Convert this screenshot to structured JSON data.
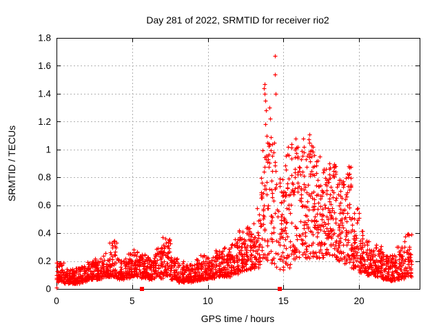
{
  "chart_data": {
    "type": "scatter",
    "title": "Day 281 of 2022, SRMTID for receiver rio2",
    "xlabel": "GPS time / hours",
    "ylabel": "SRMTID / TECUs",
    "xlim": [
      0,
      24
    ],
    "ylim": [
      0,
      1.8
    ],
    "xticks": [
      {
        "v": 0,
        "t": "0"
      },
      {
        "v": 5,
        "t": "5"
      },
      {
        "v": 10,
        "t": "10"
      },
      {
        "v": 15,
        "t": "15"
      },
      {
        "v": 20,
        "t": "20"
      }
    ],
    "yticks": [
      {
        "v": 0,
        "t": "0"
      },
      {
        "v": 0.2,
        "t": "0.2"
      },
      {
        "v": 0.4,
        "t": "0.4"
      },
      {
        "v": 0.6,
        "t": "0.6"
      },
      {
        "v": 0.8,
        "t": "0.8"
      },
      {
        "v": 1,
        "t": "1"
      },
      {
        "v": 1.2,
        "t": "1.2"
      },
      {
        "v": 1.4,
        "t": "1.4"
      },
      {
        "v": 1.6,
        "t": "1.6"
      },
      {
        "v": 1.8,
        "t": "1.8"
      }
    ],
    "grid": true,
    "legend_position": "none",
    "marker": "plus",
    "marker_color": "#ff0000",
    "grid_color": "#b0b0b0",
    "axis_color": "#000000",
    "series_name": "SRMTID",
    "band_profile": [
      [
        0.0,
        0.5,
        0.05,
        0.2,
        55
      ],
      [
        0.5,
        1.0,
        0.04,
        0.15,
        55
      ],
      [
        1.0,
        1.5,
        0.04,
        0.16,
        55
      ],
      [
        1.5,
        2.0,
        0.05,
        0.17,
        55
      ],
      [
        2.0,
        2.5,
        0.07,
        0.2,
        55
      ],
      [
        2.5,
        3.0,
        0.07,
        0.22,
        55
      ],
      [
        3.0,
        3.5,
        0.09,
        0.26,
        55
      ],
      [
        3.5,
        4.0,
        0.09,
        0.35,
        55
      ],
      [
        4.0,
        4.5,
        0.07,
        0.22,
        55
      ],
      [
        4.5,
        5.0,
        0.08,
        0.26,
        55
      ],
      [
        5.0,
        5.5,
        0.09,
        0.29,
        55
      ],
      [
        5.5,
        6.0,
        0.08,
        0.25,
        55
      ],
      [
        6.0,
        6.5,
        0.07,
        0.23,
        55
      ],
      [
        6.5,
        7.0,
        0.08,
        0.31,
        55
      ],
      [
        7.0,
        7.5,
        0.1,
        0.38,
        55
      ],
      [
        7.5,
        8.0,
        0.07,
        0.23,
        55
      ],
      [
        8.0,
        8.5,
        0.05,
        0.2,
        55
      ],
      [
        8.5,
        9.0,
        0.05,
        0.18,
        55
      ],
      [
        9.0,
        9.5,
        0.06,
        0.22,
        55
      ],
      [
        9.5,
        10.0,
        0.07,
        0.25,
        55
      ],
      [
        10.0,
        10.5,
        0.08,
        0.23,
        55
      ],
      [
        10.5,
        11.0,
        0.09,
        0.28,
        55
      ],
      [
        11.0,
        11.5,
        0.09,
        0.3,
        55
      ],
      [
        11.5,
        12.0,
        0.11,
        0.36,
        55
      ],
      [
        12.0,
        12.5,
        0.13,
        0.43,
        55
      ],
      [
        12.5,
        13.0,
        0.14,
        0.46,
        55
      ],
      [
        13.0,
        13.5,
        0.15,
        0.6,
        50
      ],
      [
        13.5,
        14.0,
        0.2,
        1.0,
        50
      ],
      [
        14.0,
        14.5,
        0.18,
        1.1,
        45
      ],
      [
        14.5,
        15.0,
        0.12,
        0.8,
        40
      ],
      [
        15.0,
        15.5,
        0.15,
        1.0,
        45
      ],
      [
        15.5,
        16.0,
        0.18,
        1.05,
        50
      ],
      [
        16.0,
        16.5,
        0.22,
        1.0,
        50
      ],
      [
        16.5,
        17.0,
        0.22,
        1.1,
        50
      ],
      [
        17.0,
        17.5,
        0.22,
        0.95,
        55
      ],
      [
        17.5,
        18.0,
        0.22,
        0.88,
        60
      ],
      [
        18.0,
        18.5,
        0.22,
        0.9,
        60
      ],
      [
        18.5,
        19.0,
        0.2,
        0.8,
        55
      ],
      [
        19.0,
        19.5,
        0.18,
        0.88,
        50
      ],
      [
        19.5,
        20.0,
        0.15,
        0.6,
        55
      ],
      [
        20.0,
        20.5,
        0.12,
        0.42,
        55
      ],
      [
        20.5,
        21.0,
        0.1,
        0.36,
        55
      ],
      [
        21.0,
        21.5,
        0.09,
        0.32,
        55
      ],
      [
        21.5,
        22.0,
        0.07,
        0.27,
        55
      ],
      [
        22.0,
        22.5,
        0.06,
        0.25,
        55
      ],
      [
        22.5,
        23.0,
        0.07,
        0.31,
        55
      ],
      [
        23.0,
        23.45,
        0.09,
        0.4,
        50
      ]
    ],
    "peak_points": [
      [
        14.45,
        1.67
      ],
      [
        14.43,
        1.54
      ],
      [
        14.47,
        1.4
      ],
      [
        13.74,
        1.47
      ],
      [
        13.72,
        1.44
      ],
      [
        13.76,
        1.4
      ],
      [
        13.8,
        1.35
      ],
      [
        13.85,
        1.28
      ],
      [
        13.82,
        1.18
      ],
      [
        13.9,
        1.1
      ],
      [
        13.95,
        1.05
      ],
      [
        14.05,
        1.3
      ],
      [
        14.1,
        1.22
      ],
      [
        15.3,
        1.02
      ],
      [
        15.33,
        0.96
      ],
      [
        15.8,
        1.08
      ],
      [
        15.83,
        1.01
      ],
      [
        16.3,
        1.08
      ],
      [
        16.33,
        1.02
      ],
      [
        16.7,
        1.11
      ],
      [
        16.73,
        1.05
      ],
      [
        16.76,
        0.97
      ],
      [
        17.05,
        0.96
      ],
      [
        17.4,
        0.95
      ],
      [
        18.4,
        0.88
      ],
      [
        18.43,
        0.84
      ],
      [
        19.3,
        0.88
      ],
      [
        19.33,
        0.82
      ],
      [
        0.02,
        0.01
      ],
      [
        0.03,
        0.16
      ],
      [
        0.04,
        0.19
      ],
      [
        0.02,
        0.1
      ]
    ],
    "baseline_marks": {
      "marker": "square",
      "color": "#ff0000",
      "x": [
        5.65,
        14.75
      ],
      "y": 0
    },
    "seed": 281
  }
}
